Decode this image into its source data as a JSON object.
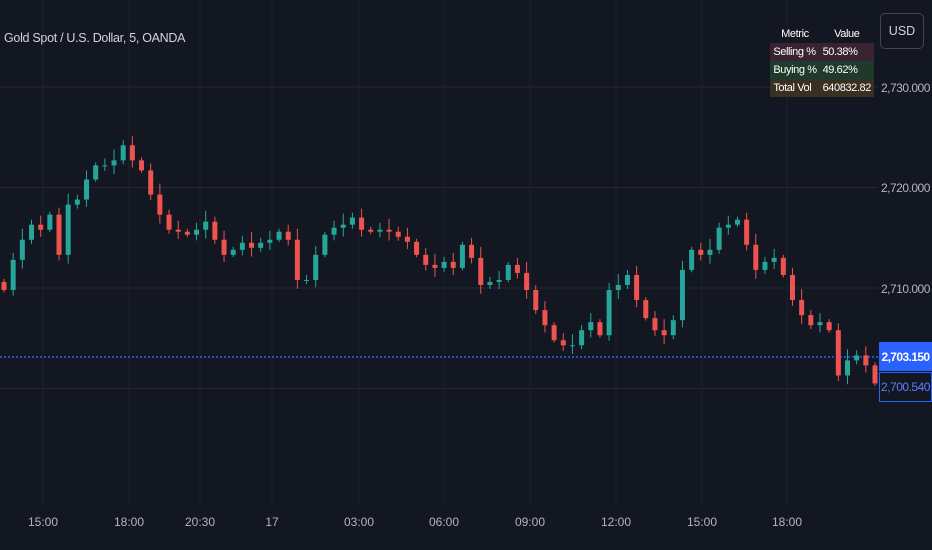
{
  "header": {
    "title": "Gold Spot / U.S. Dollar, 5, OANDA",
    "currency_button": "USD"
  },
  "table": {
    "headers": [
      "Metric",
      "Value"
    ],
    "rows": [
      {
        "metric": "Selling %",
        "value": "50.38%"
      },
      {
        "metric": "Buying %",
        "value": "49.62%"
      },
      {
        "metric": "Total Vol",
        "value": "640832.82"
      }
    ]
  },
  "price_axis": {
    "labels": [
      "2,730.000",
      "2,720.000",
      "2,710.000"
    ],
    "current_price": "2,703.150",
    "last_price": "2,700.540"
  },
  "time_axis": {
    "labels": [
      "15:00",
      "18:00",
      "20:30",
      "17",
      "03:00",
      "06:00",
      "09:00",
      "12:00",
      "15:00",
      "18:00"
    ]
  },
  "colors": {
    "up": "#26a69a",
    "down": "#ef5350",
    "current_line": "#2962ff",
    "background": "#131722",
    "grid": "#242733"
  },
  "chart_data": {
    "type": "candlestick",
    "title": "Gold Spot / U.S. Dollar, 5, OANDA",
    "ylim": [
      2694,
      2736
    ],
    "y_ticks": [
      2730,
      2720,
      2710
    ],
    "x_ticks": [
      "15:00",
      "18:00",
      "20:30",
      "17",
      "03:00",
      "06:00",
      "09:00",
      "12:00",
      "15:00",
      "18:00"
    ],
    "grid": true,
    "reference_line": 2703.15,
    "closes": [
      2709.8,
      2712.8,
      2714.8,
      2716.3,
      2715.8,
      2717.3,
      2713.3,
      2718.3,
      2718.8,
      2720.8,
      2722.2,
      2722.2,
      2722.7,
      2724.2,
      2722.7,
      2721.7,
      2719.3,
      2717.3,
      2715.8,
      2715.6,
      2715.3,
      2715.8,
      2716.6,
      2714.8,
      2713.3,
      2713.8,
      2714.5,
      2714.0,
      2714.5,
      2714.8,
      2715.6,
      2714.8,
      2710.8,
      2710.8,
      2713.3,
      2715.3,
      2716.0,
      2716.3,
      2717.0,
      2715.8,
      2715.6,
      2715.8,
      2715.6,
      2715.1,
      2714.6,
      2713.3,
      2712.3,
      2712.0,
      2712.6,
      2712.0,
      2714.3,
      2713.0,
      2710.3,
      2710.6,
      2710.8,
      2712.3,
      2711.5,
      2709.8,
      2707.8,
      2706.3,
      2704.8,
      2704.3,
      2704.3,
      2705.8,
      2706.6,
      2705.3,
      2709.8,
      2710.3,
      2711.3,
      2708.8,
      2707.0,
      2705.8,
      2705.3,
      2706.8,
      2711.8,
      2713.8,
      2713.3,
      2713.8,
      2716.0,
      2716.3,
      2716.8,
      2714.3,
      2711.8,
      2712.6,
      2713.0,
      2711.3,
      2708.8,
      2707.3,
      2706.3,
      2706.6,
      2705.8,
      2701.3,
      2702.8,
      2703.3,
      2702.3,
      2700.5
    ]
  }
}
